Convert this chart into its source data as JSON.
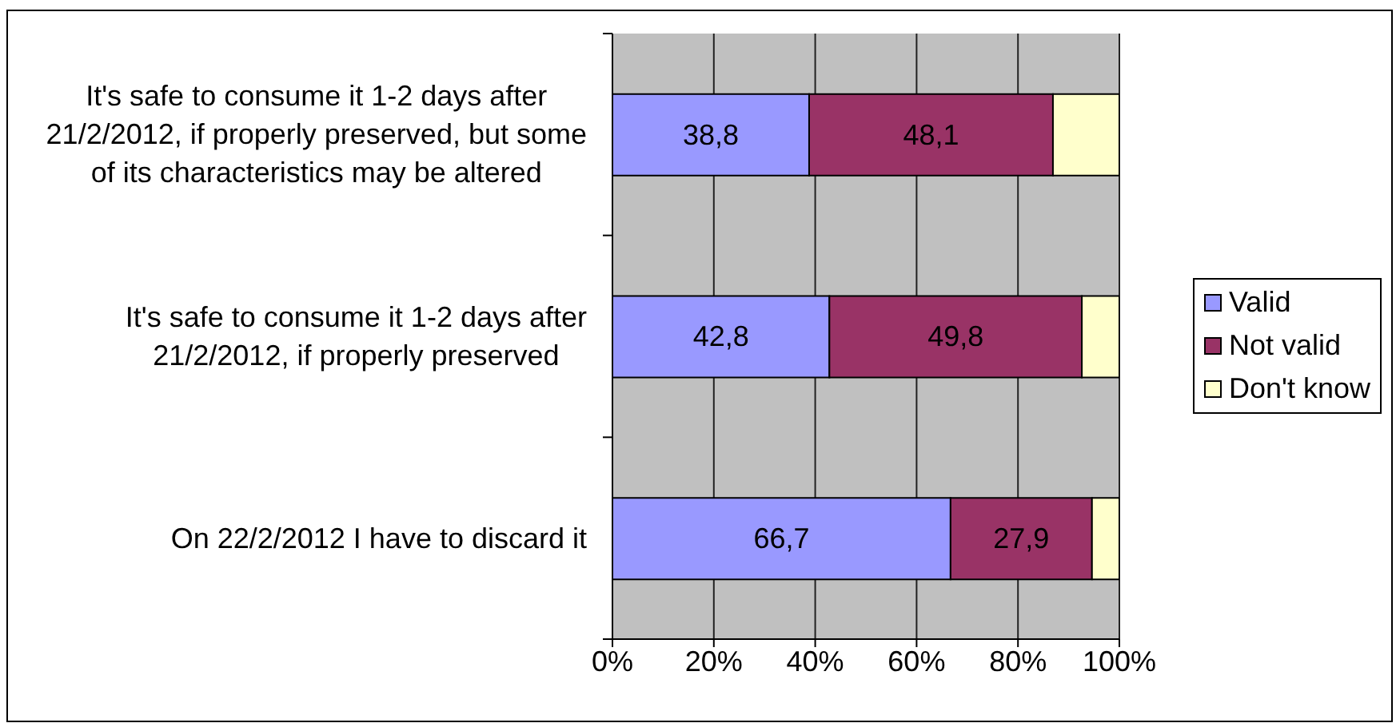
{
  "chart_data": {
    "type": "bar",
    "orientation": "horizontal",
    "stacked": true,
    "categories": [
      "It's safe to consume it 1-2 days after 21/2/2012, if properly preserved, but some of its characteristics may be altered",
      "It's safe to consume it 1-2 days after 21/2/2012, if properly preserved",
      "On 22/2/2012 I have to discard it"
    ],
    "series": [
      {
        "name": "Valid",
        "color": "#9999ff",
        "values": [
          38.8,
          42.8,
          66.7
        ],
        "value_labels": [
          "38,8",
          "42,8",
          "66,7"
        ]
      },
      {
        "name": "Not valid",
        "color": "#993366",
        "values": [
          48.1,
          49.8,
          27.9
        ],
        "value_labels": [
          "48,1",
          "49,8",
          "27,9"
        ]
      },
      {
        "name": "Don't know",
        "color": "#ffffcc",
        "values": [
          13.1,
          7.4,
          5.4
        ]
      }
    ],
    "xlim": [
      0,
      100
    ],
    "xticks": [
      {
        "value": 0,
        "label": "0%"
      },
      {
        "value": 20,
        "label": "20%"
      },
      {
        "value": 40,
        "label": "40%"
      },
      {
        "value": 60,
        "label": "60%"
      },
      {
        "value": 80,
        "label": "80%"
      },
      {
        "value": 100,
        "label": "100%"
      }
    ],
    "grid": "x",
    "legend": "right"
  }
}
